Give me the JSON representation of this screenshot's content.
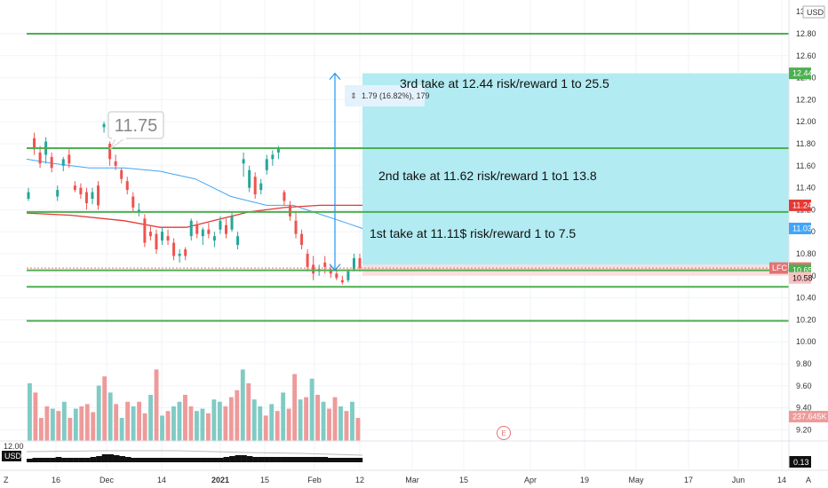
{
  "chart_data": {
    "type": "candlestick",
    "symbol": "LFC",
    "currency": "USD",
    "price_axis": {
      "ticks": [
        "12.80",
        "12.60",
        "12.40",
        "12.20",
        "12.00",
        "11.80",
        "11.60",
        "11.40",
        "11.20",
        "11.00",
        "10.80",
        "10.60",
        "10.40",
        "10.20",
        "10.00",
        "9.80",
        "9.60",
        "9.40",
        "9.20"
      ],
      "top_label": "13.00"
    },
    "time_axis": {
      "ticks": [
        "16",
        "Dec",
        "14",
        "2021",
        "15",
        "Feb",
        "12",
        "Mar",
        "15",
        "Apr",
        "19",
        "May",
        "17",
        "Jun",
        "14"
      ]
    },
    "price_tags": [
      {
        "label": "12.44",
        "value": 12.44,
        "color": "#4caf50",
        "text": "light"
      },
      {
        "label": "11.24",
        "value": 11.24,
        "color": "#e53935",
        "text": "light"
      },
      {
        "label": "11.03",
        "value": 11.03,
        "color": "#42a5f5",
        "text": "light"
      },
      {
        "label": "10.67",
        "value": 10.67,
        "color": "#e57373",
        "text": "light",
        "prefix": "LFC"
      },
      {
        "label": "10.65",
        "value": 10.65,
        "color": "#4caf50",
        "text": "light"
      },
      {
        "label": "10.58",
        "value": 10.58,
        "color": "#f8c3c3",
        "text": "dark"
      },
      {
        "label": "237.645K",
        "value": 9.32,
        "color": "#ef9a9a",
        "text": "light"
      }
    ],
    "horizontal_lines": [
      12.8,
      11.76,
      11.18,
      10.65,
      10.5,
      10.19
    ],
    "annotations": {
      "take1": "1st take at 11.11$ risk/reward 1 to 7.5",
      "take2": "2nd take at 11.62 risk/reward 1 to1 13.8",
      "take3": "3rd take at 12.44 risk/reward 1 to 25.5",
      "callout": "11.75",
      "measure": "1.79 (16.82%), 179"
    },
    "volume_label": "237.645K",
    "indicator_label": "0.13",
    "indicator_top": "12.00",
    "earnings_marker": "E",
    "colors": {
      "up": "#26a69a",
      "down": "#ef5350",
      "vol_up": "#80cbc4",
      "vol_down": "#ef9a9a",
      "level": "#4caf50",
      "target_zone": "#b2ebf2",
      "stop_zone": "#fcdede",
      "ma_blue": "#42a5f5",
      "ma_red": "#e53935",
      "measure": "#2196f3"
    },
    "candles": [
      {
        "o": 11.3,
        "h": 11.4,
        "l": 11.28,
        "c": 11.36
      },
      {
        "o": 11.85,
        "h": 11.9,
        "l": 11.7,
        "c": 11.75
      },
      {
        "o": 11.72,
        "h": 11.78,
        "l": 11.58,
        "c": 11.62
      },
      {
        "o": 11.7,
        "h": 11.86,
        "l": 11.62,
        "c": 11.82
      },
      {
        "o": 11.68,
        "h": 11.72,
        "l": 11.54,
        "c": 11.58
      },
      {
        "o": 11.32,
        "h": 11.42,
        "l": 11.28,
        "c": 11.38
      },
      {
        "o": 11.6,
        "h": 11.68,
        "l": 11.55,
        "c": 11.66
      },
      {
        "o": 11.7,
        "h": 11.75,
        "l": 11.58,
        "c": 11.62
      },
      {
        "o": 11.42,
        "h": 11.46,
        "l": 11.36,
        "c": 11.38
      },
      {
        "o": 11.4,
        "h": 11.44,
        "l": 11.3,
        "c": 11.34
      },
      {
        "o": 11.36,
        "h": 11.4,
        "l": 11.2,
        "c": 11.26
      },
      {
        "o": 11.3,
        "h": 11.4,
        "l": 11.25,
        "c": 11.36
      },
      {
        "o": 11.42,
        "h": 11.46,
        "l": 11.2,
        "c": 11.24
      },
      {
        "o": 11.95,
        "h": 12.0,
        "l": 11.9,
        "c": 11.98
      },
      {
        "o": 11.8,
        "h": 11.82,
        "l": 11.6,
        "c": 11.66
      },
      {
        "o": 11.64,
        "h": 11.7,
        "l": 11.56,
        "c": 11.6
      },
      {
        "o": 11.56,
        "h": 11.58,
        "l": 11.44,
        "c": 11.48
      },
      {
        "o": 11.46,
        "h": 11.5,
        "l": 11.34,
        "c": 11.38
      },
      {
        "o": 11.32,
        "h": 11.36,
        "l": 11.18,
        "c": 11.22
      },
      {
        "o": 11.18,
        "h": 11.26,
        "l": 11.14,
        "c": 11.2
      },
      {
        "o": 11.12,
        "h": 11.16,
        "l": 10.86,
        "c": 10.9
      },
      {
        "o": 11.0,
        "h": 11.06,
        "l": 10.92,
        "c": 10.96
      },
      {
        "o": 10.98,
        "h": 11.02,
        "l": 10.8,
        "c": 10.84
      },
      {
        "o": 10.92,
        "h": 11.04,
        "l": 10.88,
        "c": 11.0
      },
      {
        "o": 10.96,
        "h": 11.02,
        "l": 10.88,
        "c": 10.92
      },
      {
        "o": 10.9,
        "h": 10.94,
        "l": 10.74,
        "c": 10.78
      },
      {
        "o": 10.78,
        "h": 10.84,
        "l": 10.72,
        "c": 10.8
      },
      {
        "o": 10.84,
        "h": 10.86,
        "l": 10.74,
        "c": 10.78
      },
      {
        "o": 10.96,
        "h": 11.12,
        "l": 10.92,
        "c": 11.1
      },
      {
        "o": 11.06,
        "h": 11.1,
        "l": 10.94,
        "c": 10.98
      },
      {
        "o": 10.96,
        "h": 11.04,
        "l": 10.88,
        "c": 11.02
      },
      {
        "o": 11.02,
        "h": 11.08,
        "l": 10.94,
        "c": 10.98
      },
      {
        "o": 10.92,
        "h": 11.0,
        "l": 10.86,
        "c": 10.96
      },
      {
        "o": 11.02,
        "h": 11.14,
        "l": 10.98,
        "c": 11.1
      },
      {
        "o": 11.06,
        "h": 11.12,
        "l": 10.94,
        "c": 10.98
      },
      {
        "o": 11.02,
        "h": 11.18,
        "l": 11.0,
        "c": 11.14
      },
      {
        "o": 10.88,
        "h": 11.0,
        "l": 10.84,
        "c": 10.96
      },
      {
        "o": 11.62,
        "h": 11.72,
        "l": 11.5,
        "c": 11.66
      },
      {
        "o": 11.4,
        "h": 11.6,
        "l": 11.36,
        "c": 11.56
      },
      {
        "o": 11.5,
        "h": 11.54,
        "l": 11.3,
        "c": 11.34
      },
      {
        "o": 11.38,
        "h": 11.48,
        "l": 11.34,
        "c": 11.44
      },
      {
        "o": 11.56,
        "h": 11.7,
        "l": 11.52,
        "c": 11.66
      },
      {
        "o": 11.66,
        "h": 11.74,
        "l": 11.6,
        "c": 11.7
      },
      {
        "o": 11.72,
        "h": 11.78,
        "l": 11.66,
        "c": 11.76
      },
      {
        "o": 11.36,
        "h": 11.38,
        "l": 11.24,
        "c": 11.28
      },
      {
        "o": 11.24,
        "h": 11.28,
        "l": 11.1,
        "c": 11.14
      },
      {
        "o": 11.1,
        "h": 11.18,
        "l": 10.94,
        "c": 10.98
      },
      {
        "o": 10.98,
        "h": 11.02,
        "l": 10.84,
        "c": 10.88
      },
      {
        "o": 10.8,
        "h": 10.84,
        "l": 10.64,
        "c": 10.68
      },
      {
        "o": 10.7,
        "h": 10.78,
        "l": 10.56,
        "c": 10.62
      },
      {
        "o": 10.64,
        "h": 10.7,
        "l": 10.6,
        "c": 10.66
      },
      {
        "o": 10.72,
        "h": 10.78,
        "l": 10.62,
        "c": 10.68
      },
      {
        "o": 10.66,
        "h": 10.7,
        "l": 10.58,
        "c": 10.62
      },
      {
        "o": 10.62,
        "h": 10.66,
        "l": 10.56,
        "c": 10.58
      },
      {
        "o": 10.56,
        "h": 10.6,
        "l": 10.52,
        "c": 10.54
      },
      {
        "o": 10.56,
        "h": 10.66,
        "l": 10.54,
        "c": 10.64
      },
      {
        "o": 10.66,
        "h": 10.8,
        "l": 10.64,
        "c": 10.76
      },
      {
        "o": 10.76,
        "h": 10.8,
        "l": 10.64,
        "c": 10.67
      }
    ],
    "volume": [
      {
        "v": 0.5,
        "up": true
      },
      {
        "v": 0.42,
        "up": false
      },
      {
        "v": 0.2,
        "up": false
      },
      {
        "v": 0.3,
        "up": false
      },
      {
        "v": 0.28,
        "up": true
      },
      {
        "v": 0.26,
        "up": false
      },
      {
        "v": 0.34,
        "up": true
      },
      {
        "v": 0.2,
        "up": false
      },
      {
        "v": 0.28,
        "up": true
      },
      {
        "v": 0.3,
        "up": false
      },
      {
        "v": 0.32,
        "up": false
      },
      {
        "v": 0.25,
        "up": false
      },
      {
        "v": 0.48,
        "up": true
      },
      {
        "v": 0.56,
        "up": false
      },
      {
        "v": 0.42,
        "up": true
      },
      {
        "v": 0.32,
        "up": false
      },
      {
        "v": 0.2,
        "up": true
      },
      {
        "v": 0.34,
        "up": false
      },
      {
        "v": 0.3,
        "up": true
      },
      {
        "v": 0.34,
        "up": false
      },
      {
        "v": 0.24,
        "up": false
      },
      {
        "v": 0.4,
        "up": true
      },
      {
        "v": 0.62,
        "up": false
      },
      {
        "v": 0.22,
        "up": true
      },
      {
        "v": 0.26,
        "up": false
      },
      {
        "v": 0.3,
        "up": true
      },
      {
        "v": 0.34,
        "up": true
      },
      {
        "v": 0.4,
        "up": false
      },
      {
        "v": 0.3,
        "up": false
      },
      {
        "v": 0.26,
        "up": true
      },
      {
        "v": 0.28,
        "up": true
      },
      {
        "v": 0.24,
        "up": false
      },
      {
        "v": 0.36,
        "up": true
      },
      {
        "v": 0.34,
        "up": true
      },
      {
        "v": 0.3,
        "up": false
      },
      {
        "v": 0.38,
        "up": false
      },
      {
        "v": 0.44,
        "up": false
      },
      {
        "v": 0.62,
        "up": true
      },
      {
        "v": 0.5,
        "up": false
      },
      {
        "v": 0.36,
        "up": true
      },
      {
        "v": 0.3,
        "up": true
      },
      {
        "v": 0.22,
        "up": false
      },
      {
        "v": 0.32,
        "up": true
      },
      {
        "v": 0.26,
        "up": false
      },
      {
        "v": 0.42,
        "up": true
      },
      {
        "v": 0.28,
        "up": false
      },
      {
        "v": 0.58,
        "up": false
      },
      {
        "v": 0.36,
        "up": true
      },
      {
        "v": 0.38,
        "up": false
      },
      {
        "v": 0.54,
        "up": true
      },
      {
        "v": 0.4,
        "up": false
      },
      {
        "v": 0.34,
        "up": true
      },
      {
        "v": 0.28,
        "up": false
      },
      {
        "v": 0.38,
        "up": false
      },
      {
        "v": 0.3,
        "up": true
      },
      {
        "v": 0.26,
        "up": false
      },
      {
        "v": 0.34,
        "up": true
      },
      {
        "v": 0.2,
        "up": false
      }
    ]
  }
}
